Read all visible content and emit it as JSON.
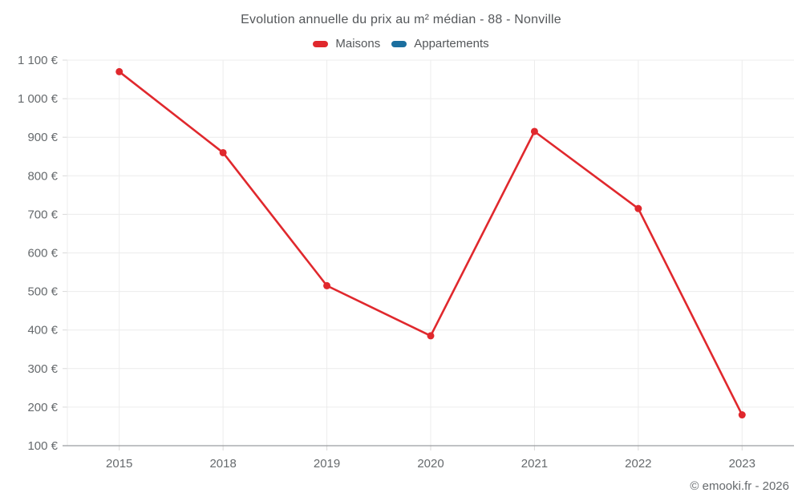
{
  "chart": {
    "title": "Evolution annuelle du prix au m² médian - 88 - Nonville"
  },
  "footer": {
    "credit": "© emooki.fr - 2026"
  },
  "chart_data": {
    "type": "line",
    "title": "Evolution annuelle du prix au m² médian - 88 - Nonville",
    "categories": [
      "2015",
      "2018",
      "2019",
      "2020",
      "2021",
      "2022",
      "2023"
    ],
    "series": [
      {
        "name": "Maisons",
        "color": "#e0282d",
        "values": [
          1070,
          860,
          515,
          385,
          915,
          715,
          180
        ]
      },
      {
        "name": "Appartements",
        "color": "#1c6f9f",
        "values": []
      }
    ],
    "xlabel": "",
    "ylabel": "",
    "y_unit": "€",
    "ylim": [
      100,
      1100
    ],
    "ytick_step": 100,
    "ytick_labels": [
      "100 €",
      "200 €",
      "300 €",
      "400 €",
      "500 €",
      "600 €",
      "700 €",
      "800 €",
      "900 €",
      "1 000 €",
      "1 100 €"
    ],
    "grid": true,
    "legend_position": "top",
    "colors": {
      "grid": "#ececec",
      "axis_line": "#9a9da0",
      "tick": "#d9d9d9",
      "tick_text": "#666a6d",
      "title_text": "#54575a"
    }
  }
}
